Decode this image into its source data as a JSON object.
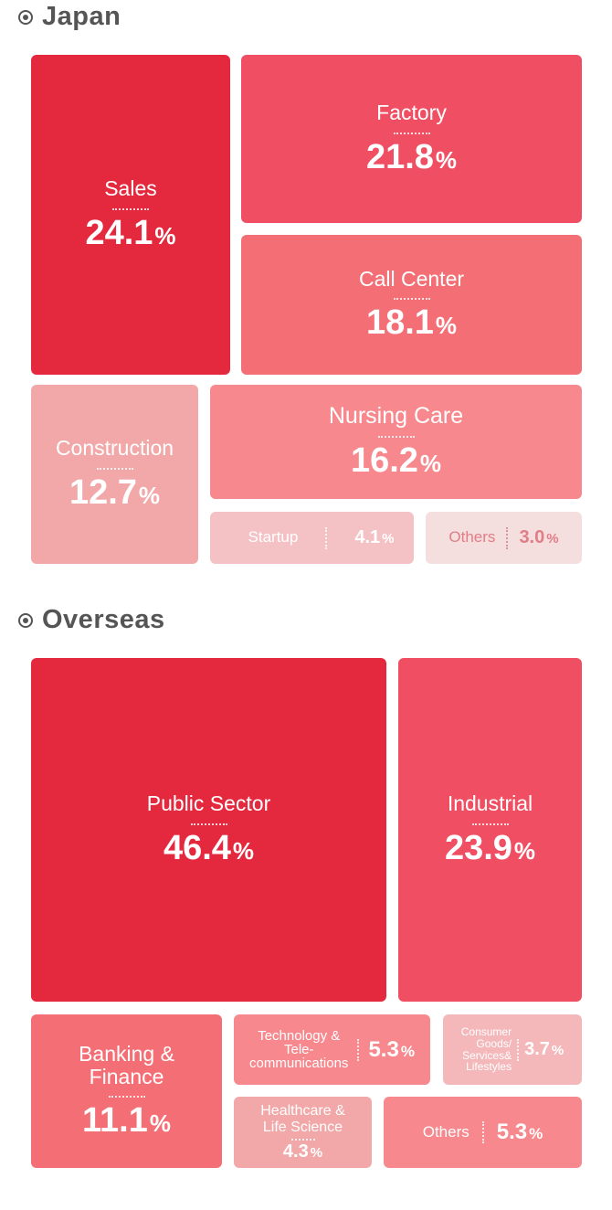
{
  "sections": [
    {
      "title": "Japan"
    },
    {
      "title": "Overseas"
    }
  ],
  "percent_unit": "%",
  "chart_data": [
    {
      "type": "treemap",
      "title": "Japan",
      "categories": [
        "Sales",
        "Factory",
        "Call Center",
        "Construction",
        "Nursing Care",
        "Startup",
        "Others"
      ],
      "values": [
        24.1,
        21.8,
        18.1,
        12.7,
        16.2,
        4.1,
        3.0
      ],
      "colors": [
        "#e4293e",
        "#f04e62",
        "#f46f75",
        "#f2a8a8",
        "#f7888d",
        "#f4c2c5",
        "#f5dede"
      ]
    },
    {
      "type": "treemap",
      "title": "Overseas",
      "categories": [
        "Public Sector",
        "Industrial",
        "Banking & Finance",
        "Technology & Tele-communications",
        "Consumer Goods/ Services& Lifestyles",
        "Healthcare & Life Science",
        "Others"
      ],
      "values": [
        46.4,
        23.9,
        11.1,
        5.3,
        3.7,
        4.3,
        5.3
      ],
      "colors": [
        "#e4293e",
        "#f04e62",
        "#f46f75",
        "#f7888d",
        "#f4b8bb",
        "#f2a8a8",
        "#f7888d"
      ]
    }
  ],
  "japan": {
    "sales": {
      "label": "Sales",
      "value": "24.1"
    },
    "factory": {
      "label": "Factory",
      "value": "21.8"
    },
    "call_center": {
      "label": "Call Center",
      "value": "18.1"
    },
    "construction": {
      "label": "Construction",
      "value": "12.7"
    },
    "nursing_care": {
      "label": "Nursing Care",
      "value": "16.2"
    },
    "startup": {
      "label": "Startup",
      "value": "4.1"
    },
    "others": {
      "label": "Others",
      "value": "3.0"
    }
  },
  "overseas": {
    "public_sector": {
      "label": "Public Sector",
      "value": "46.4"
    },
    "industrial": {
      "label": "Industrial",
      "value": "23.9"
    },
    "banking": {
      "label_line1": "Banking &",
      "label_line2": "Finance",
      "value": "11.1"
    },
    "tech": {
      "label_line1": "Technology &",
      "label_line2": "Tele-",
      "label_line3": "communications",
      "value": "5.3"
    },
    "consumer": {
      "label_line1": "Consumer",
      "label_line2": "Goods/",
      "label_line3": "Services&",
      "label_line4": "Lifestyles",
      "value": "3.7"
    },
    "healthcare": {
      "label_line1": "Healthcare &",
      "label_line2": "Life Science",
      "value": "4.3"
    },
    "others": {
      "label": "Others",
      "value": "5.3"
    }
  }
}
